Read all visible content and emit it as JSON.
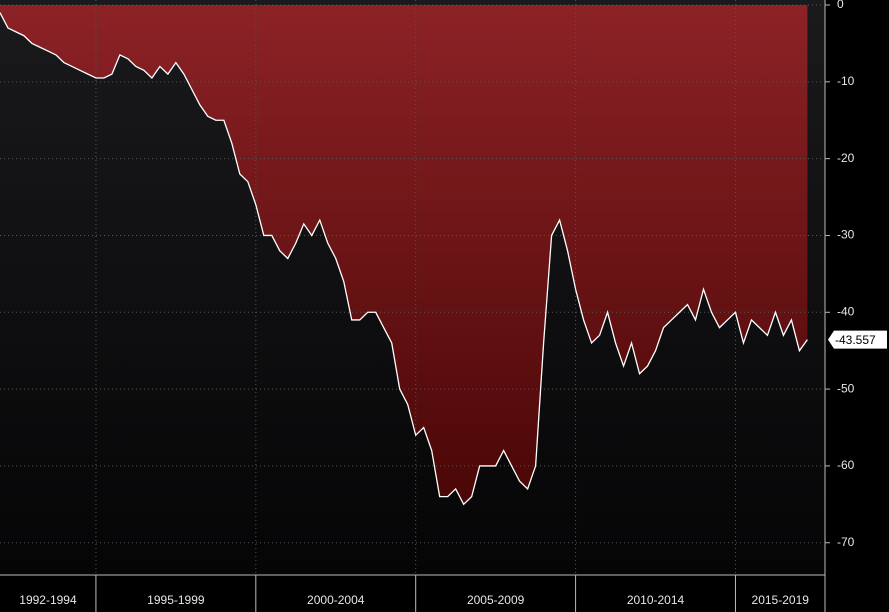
{
  "chart_data": {
    "type": "area",
    "x": [
      1992,
      1992.25,
      1992.5,
      1992.75,
      1993,
      1993.25,
      1993.5,
      1993.75,
      1994,
      1994.25,
      1994.5,
      1994.75,
      1995,
      1995.25,
      1995.5,
      1995.75,
      1996,
      1996.25,
      1996.5,
      1996.75,
      1997,
      1997.25,
      1997.5,
      1997.75,
      1998,
      1998.25,
      1998.5,
      1998.75,
      1999,
      1999.25,
      1999.5,
      1999.75,
      2000,
      2000.25,
      2000.5,
      2000.75,
      2001,
      2001.25,
      2001.5,
      2001.75,
      2002,
      2002.25,
      2002.5,
      2002.75,
      2003,
      2003.25,
      2003.5,
      2003.75,
      2004,
      2004.25,
      2004.5,
      2004.75,
      2005,
      2005.25,
      2005.5,
      2005.75,
      2006,
      2006.25,
      2006.5,
      2006.75,
      2007,
      2007.25,
      2007.5,
      2007.75,
      2008,
      2008.25,
      2008.5,
      2008.75,
      2009,
      2009.25,
      2009.5,
      2009.75,
      2010,
      2010.25,
      2010.5,
      2010.75,
      2011,
      2011.25,
      2011.5,
      2011.75,
      2012,
      2012.25,
      2012.5,
      2012.75,
      2013,
      2013.25,
      2013.5,
      2013.75,
      2014,
      2014.25,
      2014.5,
      2014.75,
      2015,
      2015.25,
      2015.5,
      2015.75,
      2016,
      2016.25,
      2016.5,
      2016.75,
      2017,
      2017.25
    ],
    "values": [
      -1,
      -3,
      -3.5,
      -4,
      -5,
      -5.5,
      -6,
      -6.5,
      -7.5,
      -8,
      -8.5,
      -9,
      -9.5,
      -9.5,
      -9,
      -6.5,
      -7,
      -8,
      -8.5,
      -9.5,
      -8,
      -9,
      -7.5,
      -9,
      -11,
      -13,
      -14.5,
      -15,
      -15,
      -18,
      -22,
      -23,
      -26,
      -30,
      -30,
      -32,
      -33,
      -31,
      -28.5,
      -30,
      -28,
      -31,
      -33,
      -36,
      -41,
      -41,
      -40,
      -40,
      -42,
      -44,
      -50,
      -52,
      -56,
      -55,
      -58,
      -64,
      -64,
      -63,
      -65,
      -64,
      -60,
      -60,
      -60,
      -58,
      -60,
      -62,
      -63,
      -60,
      -44,
      -30,
      -28,
      -32,
      -37,
      -41,
      -44,
      -43,
      -40,
      -44,
      -47,
      -44,
      -48,
      -47,
      -45,
      -42,
      -41,
      -40,
      -39,
      -41,
      -37,
      -40,
      -42,
      -41,
      -40,
      -44,
      -41,
      -42,
      -43,
      -40,
      -43,
      -41,
      -45,
      -43.557
    ],
    "xlim": [
      1992,
      2017.8
    ],
    "xticks": [
      1995,
      2000,
      2005,
      2010,
      2015
    ],
    "period_labels": [
      "1992-1994",
      "1995-1999",
      "2000-2004",
      "2005-2009",
      "2010-2014",
      "2015-2019"
    ],
    "ylim": [
      -74.2,
      0
    ],
    "yticks": [
      0,
      -10,
      -20,
      -30,
      -40,
      -50,
      -60,
      -70
    ],
    "grid": true,
    "line_color": "#ffffff",
    "fill_top": "#8c2226",
    "fill_bottom": "#4a0606"
  }
}
